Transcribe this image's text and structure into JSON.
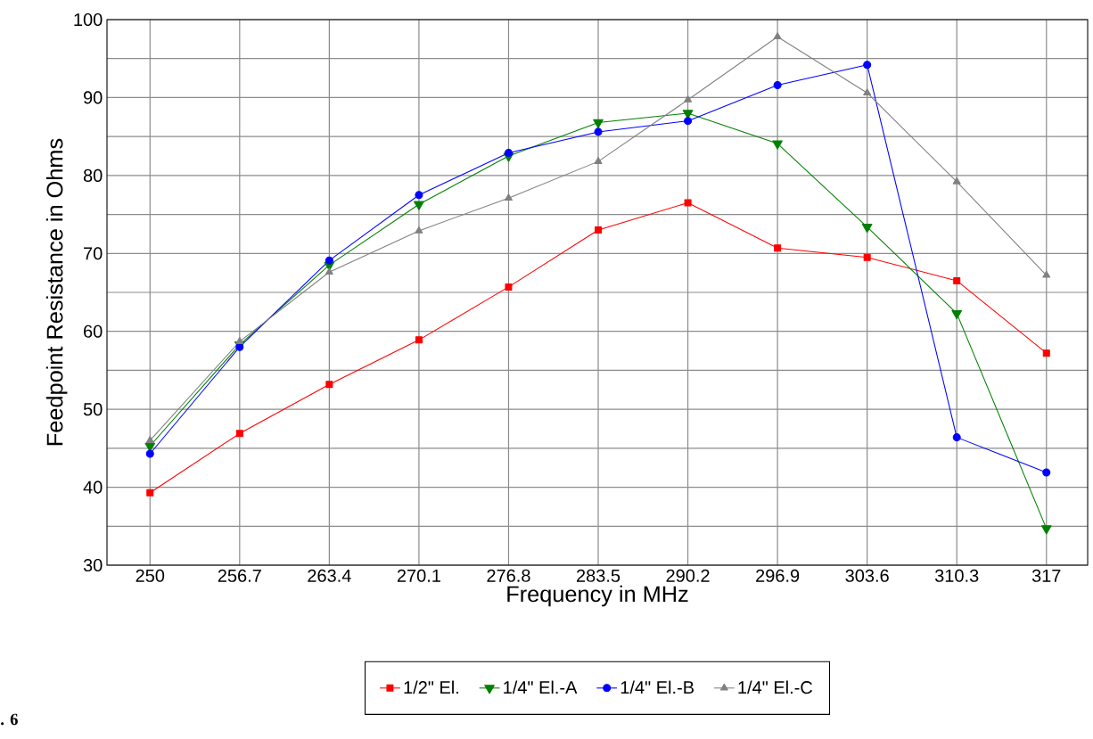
{
  "chart_data": {
    "type": "line",
    "xlabel": "Frequency in MHz",
    "ylabel": "Feedpoint Resistance in Ohms",
    "categories": [
      "250",
      "256.7",
      "263.4",
      "270.1",
      "276.8",
      "283.5",
      "290.2",
      "296.9",
      "303.6",
      "310.3",
      "317"
    ],
    "series": [
      {
        "name": "1/2\" El.",
        "color": "#ff0000",
        "marker": "square",
        "values": [
          39.3,
          46.9,
          53.2,
          58.9,
          65.7,
          73.0,
          76.5,
          70.7,
          69.5,
          66.5,
          57.2
        ]
      },
      {
        "name": "1/4\" El.-A",
        "color": "#008000",
        "marker": "triangle_down",
        "values": [
          45.3,
          58.3,
          68.5,
          76.3,
          82.5,
          86.8,
          88.0,
          84.1,
          73.4,
          62.3,
          34.7
        ]
      },
      {
        "name": "1/4\" El.-B",
        "color": "#0000ff",
        "marker": "circle",
        "values": [
          44.3,
          58.0,
          69.1,
          77.5,
          82.9,
          85.6,
          87.0,
          91.6,
          94.2,
          46.4,
          41.9
        ]
      },
      {
        "name": "1/4\" El.-C",
        "color": "#808080",
        "marker": "triangle",
        "values": [
          46.0,
          58.7,
          67.6,
          72.9,
          77.1,
          81.8,
          89.7,
          97.8,
          90.6,
          79.2,
          67.2
        ]
      }
    ],
    "ylim": [
      30,
      100
    ],
    "yticks": [
      30,
      {
        "value": 35,
        "label": null
      },
      40,
      {
        "value": 45,
        "label": null
      },
      50,
      {
        "value": 55,
        "label": null
      },
      60,
      {
        "value": 65,
        "label": null
      },
      70,
      {
        "value": 75,
        "label": null
      },
      80,
      {
        "value": 85,
        "label": null
      },
      90,
      {
        "value": 95,
        "label": null
      },
      100
    ],
    "grid": true,
    "legend": "bottom",
    "line_style": "solid",
    "annotations": [
      ". 6"
    ]
  }
}
